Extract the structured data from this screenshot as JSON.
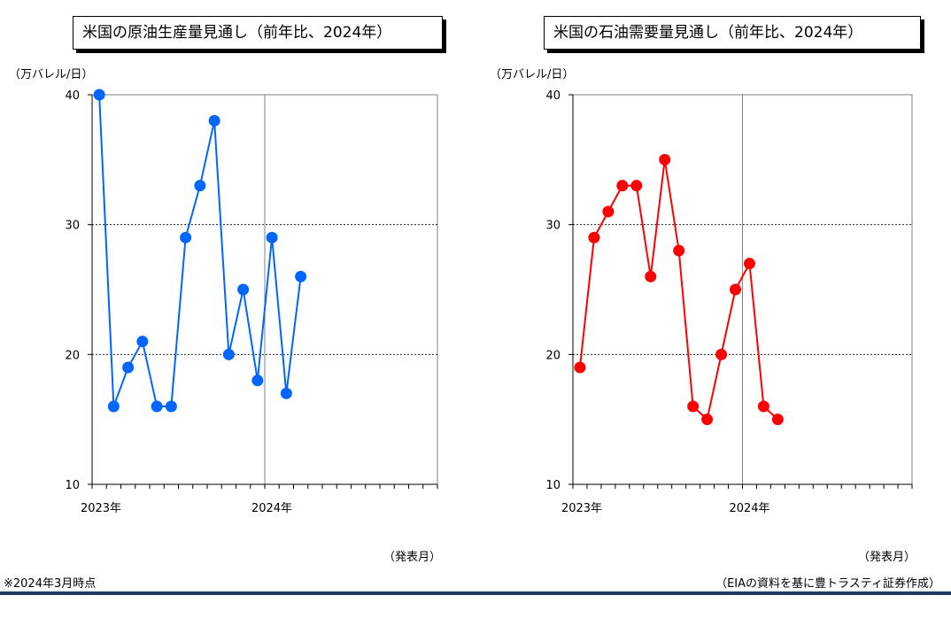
{
  "charts": [
    {
      "title": "米国の原油生産量見通し（前年比、2024年）",
      "unit": "（万バレル/日）",
      "month_label": "（発表月）",
      "color": "#0066ff"
    },
    {
      "title": "米国の石油需要量見通し（前年比、2024年）",
      "unit": "（万バレル/日）",
      "month_label": "（発表月）",
      "color": "#ff0000"
    }
  ],
  "footer": {
    "note": "※2024年3月時点",
    "source": "（EIAの資料を基に豊トラスティ証券作成）",
    "rule_color": "#1f3864"
  },
  "chart_data": [
    {
      "type": "line",
      "title": "米国の原油生産量見通し（前年比、2024年）",
      "ylabel": "（万バレル/日）",
      "xlabel": "（発表月）",
      "ylim": [
        10,
        40
      ],
      "yticks": [
        10,
        20,
        30,
        40
      ],
      "x_tick_labels": [
        "2023年",
        "2024年"
      ],
      "x": [
        "2023-01",
        "2023-02",
        "2023-03",
        "2023-04",
        "2023-05",
        "2023-06",
        "2023-07",
        "2023-08",
        "2023-09",
        "2023-10",
        "2023-11",
        "2023-12",
        "2024-01",
        "2024-02",
        "2024-03"
      ],
      "x_range": [
        "2023-01",
        "2024-12"
      ],
      "series": [
        {
          "color": "#0066ff",
          "values": [
            40,
            16,
            19,
            21,
            16,
            16,
            29,
            33,
            38,
            20,
            25,
            18,
            29,
            17,
            26
          ]
        }
      ]
    },
    {
      "type": "line",
      "title": "米国の石油需要量見通し（前年比、2024年）",
      "ylabel": "（万バレル/日）",
      "xlabel": "（発表月）",
      "ylim": [
        10,
        40
      ],
      "yticks": [
        10,
        20,
        30,
        40
      ],
      "x_tick_labels": [
        "2023年",
        "2024年"
      ],
      "x": [
        "2023-01",
        "2023-02",
        "2023-03",
        "2023-04",
        "2023-05",
        "2023-06",
        "2023-07",
        "2023-08",
        "2023-09",
        "2023-10",
        "2023-11",
        "2023-12",
        "2024-01",
        "2024-02",
        "2024-03"
      ],
      "x_range": [
        "2023-01",
        "2024-12"
      ],
      "series": [
        {
          "color": "#ff0000",
          "values": [
            19,
            29,
            31,
            33,
            33,
            26,
            35,
            28,
            16,
            15,
            20,
            25,
            27,
            16,
            15
          ]
        }
      ]
    }
  ]
}
